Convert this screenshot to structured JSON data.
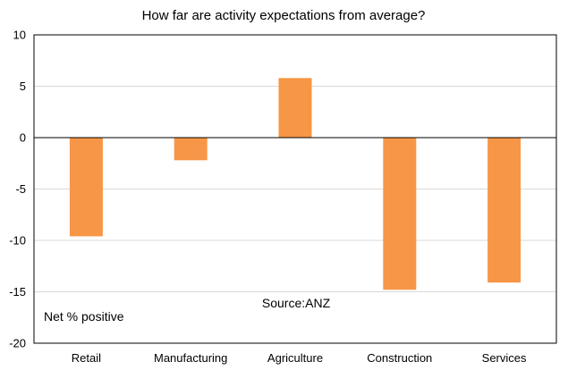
{
  "chart_data": {
    "type": "bar",
    "title": "How far are activity expectations from average?",
    "categories": [
      "Retail",
      "Manufacturing",
      "Agriculture",
      "Construction",
      "Services"
    ],
    "series": [
      {
        "values": [
          -9.6,
          -2.2,
          5.8,
          -14.8,
          -14.1
        ]
      }
    ],
    "ylim": [
      -20,
      10
    ],
    "yticks": [
      10,
      5,
      0,
      -5,
      -10,
      -15,
      -20
    ],
    "grid": true,
    "bar_color": "#F79646",
    "annotations": {
      "source": "Source:ANZ",
      "unit_note": "Net % positive"
    }
  }
}
